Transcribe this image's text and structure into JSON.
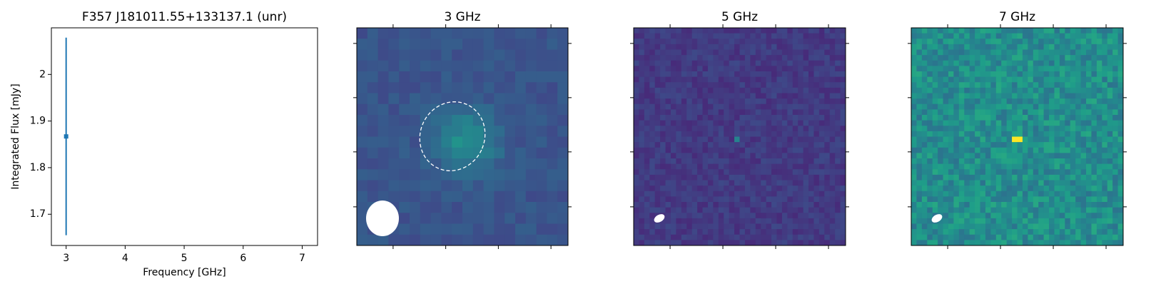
{
  "chart_data": [
    {
      "type": "errorbar",
      "title": "F357 J181011.55+133137.1 (unr)",
      "x_label": "Frequency [GHz]",
      "y_label": "Integrated Flux [mJy]",
      "x": [
        3
      ],
      "values": [
        1.867
      ],
      "errors": [
        0.212
      ],
      "color": "#1f77b4",
      "xlim": [
        2.75,
        7.26
      ],
      "xticks": [
        3,
        4,
        5,
        6,
        7
      ],
      "ylim": [
        1.633,
        2.1
      ],
      "yticks": [
        1.7,
        1.8,
        1.9,
        2.0
      ]
    },
    {
      "type": "image",
      "title": "3 GHz"
    },
    {
      "type": "image",
      "title": "5 GHz"
    },
    {
      "type": "image",
      "title": "7 GHz"
    }
  ]
}
